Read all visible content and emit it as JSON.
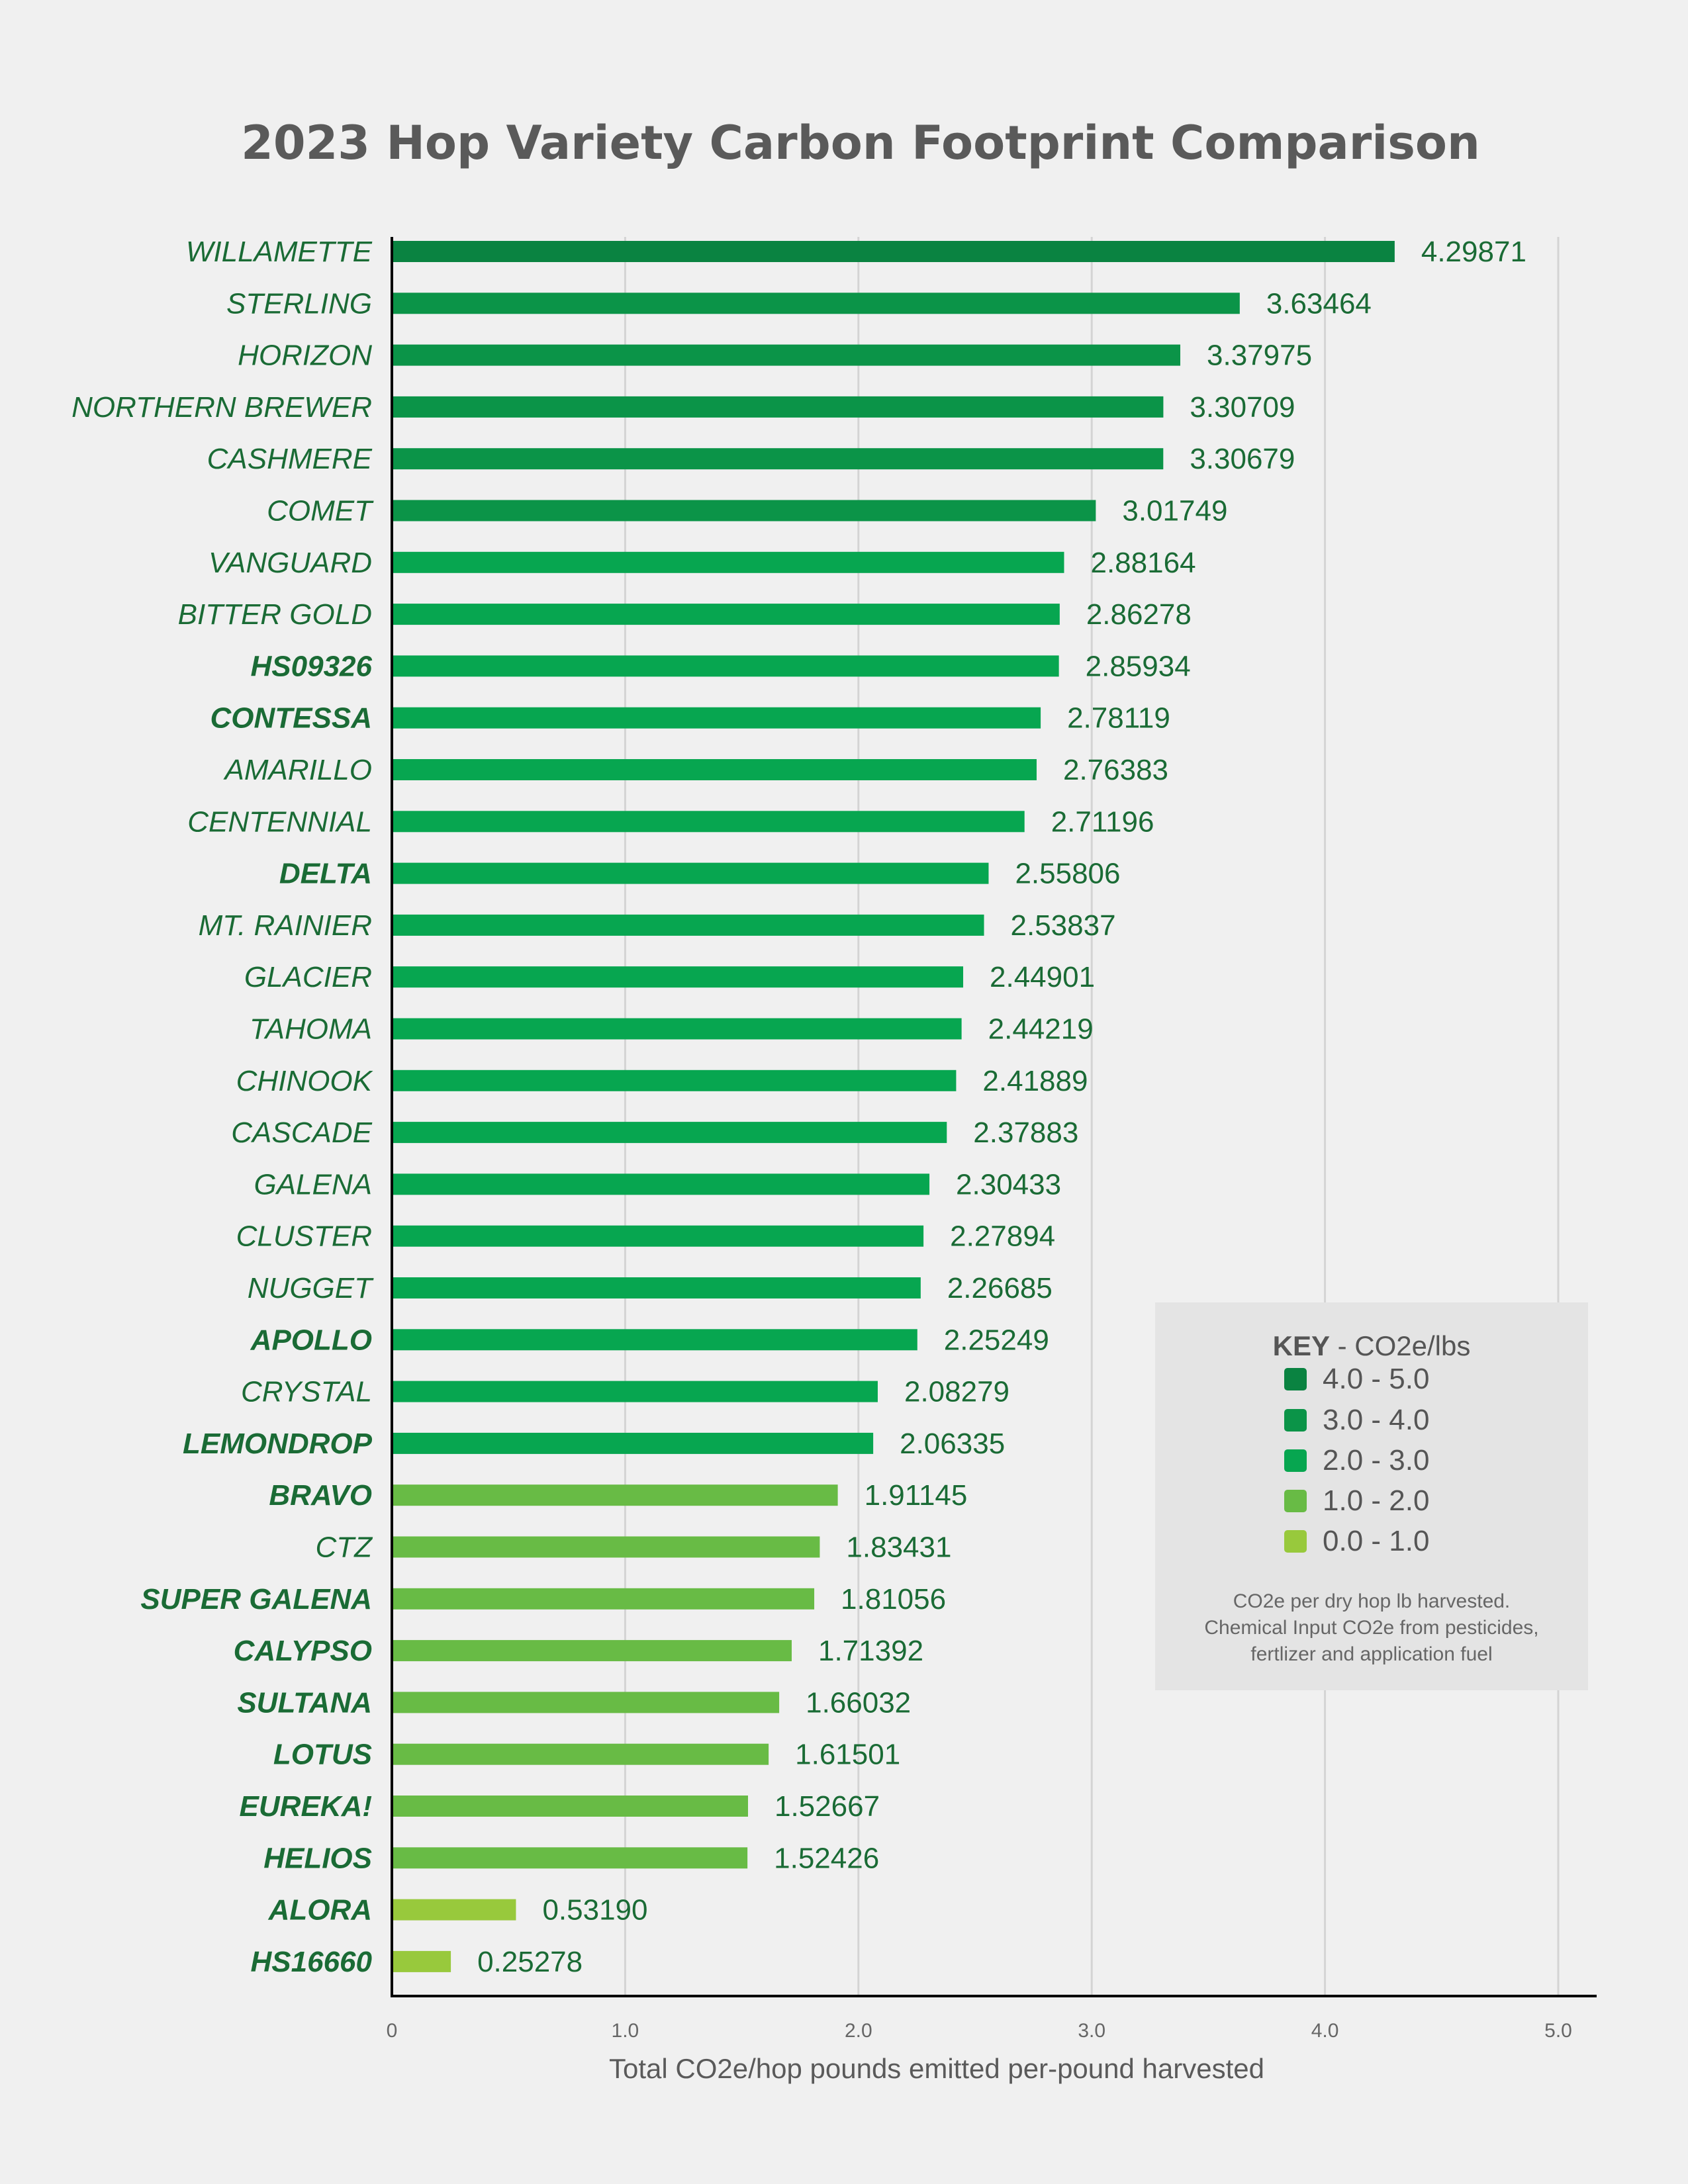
{
  "chart_data": {
    "type": "bar",
    "orientation": "horizontal",
    "title": "2023 Hop Variety Carbon Footprint Comparison",
    "xlabel": "Total CO2e/hop pounds emitted per-pound harvested",
    "xlim": [
      0,
      5.0
    ],
    "xticks": [
      "0",
      "1.0",
      "2.0",
      "3.0",
      "4.0",
      "5.0"
    ],
    "grid": "vertical",
    "categories": [
      "WILLAMETTE",
      "STERLING",
      "HORIZON",
      "NORTHERN BREWER",
      "CASHMERE",
      "COMET",
      "VANGUARD",
      "BITTER GOLD",
      "HS09326",
      "CONTESSA",
      "AMARILLO",
      "CENTENNIAL",
      "DELTA",
      "MT. RAINIER",
      "GLACIER",
      "TAHOMA",
      "CHINOOK",
      "CASCADE",
      "GALENA",
      "CLUSTER",
      "NUGGET",
      "APOLLO",
      "CRYSTAL",
      "LEMONDROP",
      "BRAVO",
      "CTZ",
      "SUPER GALENA",
      "CALYPSO",
      "SULTANA",
      "LOTUS",
      "EUREKA!",
      "HELIOS",
      "ALORA",
      "HS16660"
    ],
    "values": [
      4.29871,
      3.63464,
      3.37975,
      3.30709,
      3.30679,
      3.01749,
      2.88164,
      2.86278,
      2.85934,
      2.78119,
      2.76383,
      2.71196,
      2.55806,
      2.53837,
      2.44901,
      2.44219,
      2.41889,
      2.37883,
      2.30433,
      2.27894,
      2.26685,
      2.25249,
      2.08279,
      2.06335,
      1.91145,
      1.83431,
      1.81056,
      1.71392,
      1.66032,
      1.61501,
      1.52667,
      1.52426,
      0.5319,
      0.25278
    ],
    "value_labels": [
      "4.29871",
      "3.63464",
      "3.37975",
      "3.30709",
      "3.30679",
      "3.01749",
      "2.88164",
      "2.86278",
      "2.85934",
      "2.78119",
      "2.76383",
      "2.71196",
      "2.55806",
      "2.53837",
      "2.44901",
      "2.44219",
      "2.41889",
      "2.37883",
      "2.30433",
      "2.27894",
      "2.26685",
      "2.25249",
      "2.08279",
      "2.06335",
      "1.91145",
      "1.83431",
      "1.81056",
      "1.71392",
      "1.66032",
      "1.61501",
      "1.52667",
      "1.52426",
      "0.53190",
      "0.25278"
    ],
    "bold_categories": [
      "HS09326",
      "CONTESSA",
      "DELTA",
      "APOLLO",
      "LEMONDROP",
      "BRAVO",
      "SUPER GALENA",
      "CALYPSO",
      "SULTANA",
      "LOTUS",
      "EUREKA!",
      "HELIOS",
      "ALORA",
      "HS16660"
    ],
    "legend": {
      "title_bold": "KEY",
      "title_rest": " - CO2e/lbs",
      "placement": "bottom-right",
      "items": [
        {
          "label": "4.0 - 5.0",
          "min": 4.0,
          "max": 5.0,
          "color": "#0a8341"
        },
        {
          "label": "3.0 - 4.0",
          "min": 3.0,
          "max": 4.0,
          "color": "#0b9448"
        },
        {
          "label": "2.0 - 3.0",
          "min": 2.0,
          "max": 3.0,
          "color": "#07a650"
        },
        {
          "label": "1.0 - 2.0",
          "min": 1.0,
          "max": 2.0,
          "color": "#68bb45"
        },
        {
          "label": "0.0 - 1.0",
          "min": 0.0,
          "max": 1.0,
          "color": "#98c93c"
        }
      ],
      "note": [
        "CO2e per dry hop lb harvested.",
        "Chemical Input CO2e from pesticides,",
        "fertlizer and application fuel"
      ]
    }
  }
}
